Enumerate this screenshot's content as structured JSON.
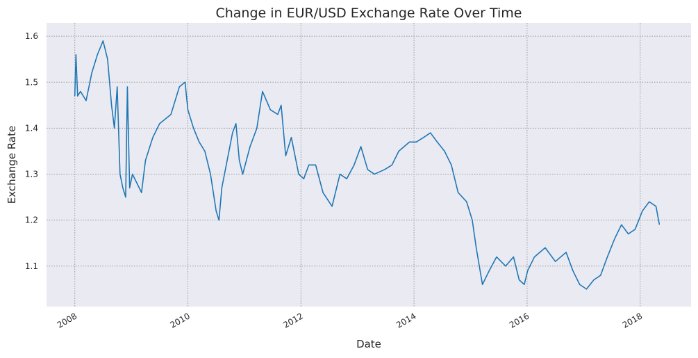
{
  "chart_data": {
    "type": "line",
    "title": "Change in EUR/USD Exchange Rate Over Time",
    "x_label": "Date",
    "y_label": "Exchange Rate",
    "x": [
      2008.0,
      2008.02,
      2008.05,
      2008.1,
      2008.2,
      2008.3,
      2008.4,
      2008.5,
      2008.58,
      2008.65,
      2008.7,
      2008.75,
      2008.8,
      2008.85,
      2008.9,
      2008.93,
      2008.97,
      2009.02,
      2009.1,
      2009.18,
      2009.25,
      2009.38,
      2009.5,
      2009.7,
      2009.85,
      2009.95,
      2010.0,
      2010.1,
      2010.2,
      2010.3,
      2010.4,
      2010.5,
      2010.55,
      2010.6,
      2010.79,
      2010.85,
      2010.91,
      2010.97,
      2011.1,
      2011.22,
      2011.32,
      2011.46,
      2011.59,
      2011.65,
      2011.73,
      2011.83,
      2011.96,
      2012.05,
      2012.14,
      2012.26,
      2012.39,
      2012.55,
      2012.69,
      2012.81,
      2012.94,
      2013.06,
      2013.18,
      2013.3,
      2013.48,
      2013.61,
      2013.73,
      2013.92,
      2014.04,
      2014.17,
      2014.29,
      2014.41,
      2014.54,
      2014.66,
      2014.78,
      2014.93,
      2015.03,
      2015.1,
      2015.21,
      2015.33,
      2015.46,
      2015.62,
      2015.76,
      2015.86,
      2015.95,
      2016.01,
      2016.13,
      2016.32,
      2016.5,
      2016.69,
      2016.81,
      2016.93,
      2017.05,
      2017.18,
      2017.3,
      2017.42,
      2017.55,
      2017.67,
      2017.79,
      2017.91,
      2018.04,
      2018.16,
      2018.28,
      2018.34
    ],
    "series": [
      {
        "name": "EUR/USD",
        "color": "#1f77b4",
        "values": [
          1.47,
          1.56,
          1.47,
          1.48,
          1.46,
          1.52,
          1.56,
          1.59,
          1.55,
          1.45,
          1.4,
          1.49,
          1.3,
          1.27,
          1.25,
          1.49,
          1.27,
          1.3,
          1.28,
          1.26,
          1.33,
          1.38,
          1.41,
          1.43,
          1.49,
          1.5,
          1.44,
          1.4,
          1.37,
          1.35,
          1.3,
          1.22,
          1.2,
          1.27,
          1.39,
          1.41,
          1.33,
          1.3,
          1.36,
          1.4,
          1.48,
          1.44,
          1.43,
          1.45,
          1.34,
          1.38,
          1.3,
          1.29,
          1.32,
          1.32,
          1.26,
          1.23,
          1.3,
          1.29,
          1.32,
          1.36,
          1.31,
          1.3,
          1.31,
          1.32,
          1.35,
          1.37,
          1.37,
          1.38,
          1.39,
          1.37,
          1.35,
          1.32,
          1.26,
          1.24,
          1.2,
          1.14,
          1.06,
          1.09,
          1.12,
          1.1,
          1.12,
          1.07,
          1.06,
          1.09,
          1.12,
          1.14,
          1.11,
          1.13,
          1.09,
          1.06,
          1.05,
          1.07,
          1.08,
          1.12,
          1.16,
          1.19,
          1.17,
          1.18,
          1.22,
          1.24,
          1.23,
          1.19
        ]
      }
    ],
    "xlim": [
      2007.5,
      2018.9
    ],
    "ylim": [
      1.012,
      1.629
    ],
    "xticks": [
      2008,
      2010,
      2012,
      2014,
      2016,
      2018
    ],
    "yticks": [
      1.1,
      1.2,
      1.3,
      1.4,
      1.5,
      1.6
    ],
    "grid": true
  }
}
